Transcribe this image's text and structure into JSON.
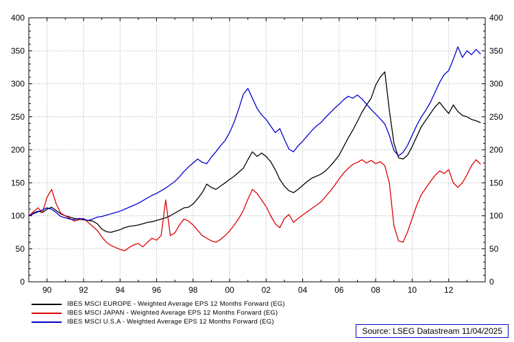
{
  "chart_data": {
    "type": "line",
    "title": "",
    "xlabel": "",
    "ylabel": "",
    "x_range": [
      1989,
      2014
    ],
    "y_range": [
      0,
      400
    ],
    "y_tick_step": 50,
    "grid": true,
    "legend_position": "bottom-left",
    "x_tick_labels": [
      "90",
      "92",
      "94",
      "96",
      "98",
      "00",
      "02",
      "04",
      "06",
      "08",
      "10",
      "12"
    ],
    "x_tick_years": [
      1990,
      1992,
      1994,
      1996,
      1998,
      2000,
      2002,
      2004,
      2006,
      2008,
      2010,
      2012
    ],
    "y_tick_values": [
      0,
      50,
      100,
      150,
      200,
      250,
      300,
      350,
      400
    ],
    "series": [
      {
        "name": "IBES MSCI EUROPE - Weighted Average EPS 12 Months Forward (EG)",
        "color": "#000000",
        "x_start": 1989.0,
        "x_step": 0.25,
        "values": [
          100,
          104,
          107,
          105,
          110,
          113,
          108,
          103,
          100,
          98,
          96,
          95,
          94,
          93,
          92,
          88,
          80,
          76,
          75,
          77,
          79,
          82,
          84,
          85,
          86,
          88,
          90,
          91,
          93,
          95,
          97,
          100,
          104,
          108,
          112,
          113,
          118,
          126,
          135,
          148,
          143,
          140,
          145,
          150,
          155,
          160,
          166,
          172,
          185,
          197,
          190,
          195,
          190,
          182,
          170,
          155,
          145,
          138,
          135,
          140,
          146,
          152,
          157,
          160,
          163,
          168,
          175,
          183,
          192,
          205,
          218,
          230,
          243,
          257,
          268,
          278,
          298,
          310,
          318,
          260,
          210,
          188,
          186,
          192,
          205,
          220,
          235,
          245,
          255,
          265,
          272,
          263,
          255,
          268,
          258,
          252,
          250,
          246,
          244,
          241
        ]
      },
      {
        "name": "IBES MSCI JAPAN - Weighted Average EPS 12 Months Forward (EG)",
        "color": "#dd0000",
        "x_start": 1989.0,
        "x_step": 0.25,
        "values": [
          100,
          106,
          112,
          105,
          128,
          140,
          118,
          104,
          100,
          96,
          92,
          94,
          96,
          90,
          84,
          78,
          68,
          60,
          55,
          52,
          49,
          47,
          52,
          56,
          58,
          53,
          60,
          66,
          63,
          70,
          124,
          70,
          74,
          86,
          95,
          92,
          86,
          78,
          70,
          66,
          62,
          60,
          64,
          70,
          77,
          86,
          96,
          108,
          125,
          140,
          134,
          124,
          114,
          100,
          88,
          82,
          96,
          102,
          90,
          96,
          101,
          106,
          111,
          116,
          121,
          129,
          137,
          146,
          156,
          165,
          172,
          178,
          181,
          185,
          180,
          184,
          179,
          182,
          176,
          150,
          85,
          62,
          60,
          76,
          96,
          116,
          132,
          142,
          152,
          161,
          168,
          164,
          170,
          150,
          143,
          150,
          162,
          176,
          185,
          178
        ]
      },
      {
        "name": "IBES MSCI U.S.A - Weighted Average EPS 12 Months Forward (EG)",
        "color": "#0000cc",
        "x_start": 1989.0,
        "x_step": 0.25,
        "values": [
          100,
          103,
          106,
          109,
          112,
          110,
          105,
          99,
          97,
          95,
          94,
          96,
          95,
          93,
          95,
          98,
          99,
          101,
          103,
          105,
          107,
          110,
          113,
          116,
          119,
          123,
          127,
          131,
          134,
          138,
          142,
          147,
          152,
          159,
          167,
          174,
          180,
          186,
          181,
          179,
          189,
          197,
          206,
          214,
          226,
          242,
          262,
          284,
          293,
          278,
          263,
          253,
          246,
          236,
          226,
          232,
          216,
          201,
          197,
          206,
          213,
          221,
          229,
          236,
          241,
          249,
          256,
          263,
          269,
          276,
          281,
          278,
          283,
          277,
          269,
          261,
          254,
          247,
          239,
          222,
          199,
          191,
          196,
          207,
          222,
          237,
          250,
          260,
          272,
          287,
          302,
          314,
          320,
          337,
          356,
          340,
          350,
          344,
          352,
          345
        ]
      }
    ]
  },
  "source": {
    "label": "Source: LSEG Datastream 11/04/2025"
  },
  "colors": {
    "grid": "#a8a8a8",
    "frame": "#000000",
    "axis_text": "#000000",
    "source_border": "#0000cc"
  }
}
